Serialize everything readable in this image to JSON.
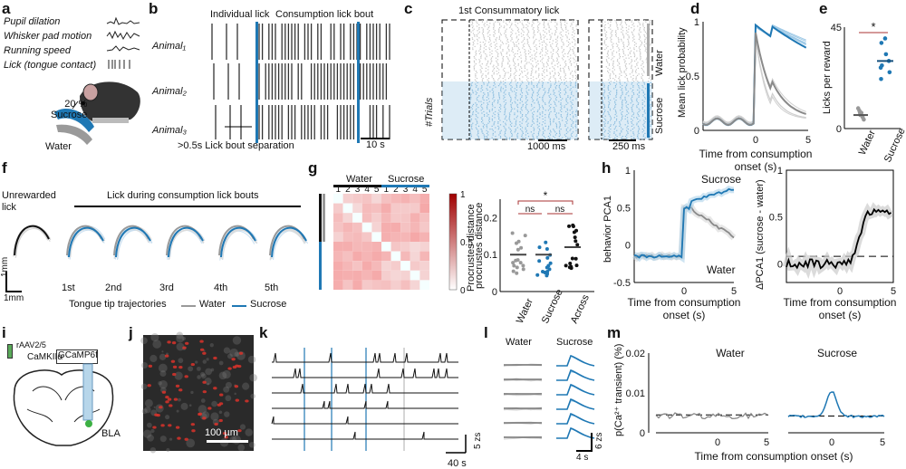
{
  "panels": {
    "a": {
      "label": "a",
      "traces": [
        "Pupil dilation",
        "Whisker pad motion",
        "Running speed",
        "Lick (tongue contact)"
      ],
      "sucrose_label": "20 %\nSucrose",
      "water_label": "Water",
      "colors": {
        "sucrose": "#1f78b4",
        "water": "#9a9a9a"
      }
    },
    "b": {
      "label": "b",
      "individual_lick": "Individual lick",
      "consumption_bout": "Consumption lick bout",
      "animals": [
        "Animal₁",
        "Animal₂",
        "Animal₃"
      ],
      "separation": ">0.5s Lick bout separation",
      "scale": "10 s"
    },
    "c": {
      "label": "c",
      "title": "1st Consummatory lick",
      "trials": "#Trials",
      "scale_left": "1000 ms",
      "scale_right": "250 ms",
      "water": "Water",
      "sucrose": "Sucrose"
    },
    "d": {
      "label": "d",
      "ylabel": "Mean lick probability",
      "xlabel": "Time from consumption\nonset (s)",
      "yticks": [
        "1",
        "0.5",
        "0"
      ],
      "xticks": [
        "0",
        "5"
      ]
    },
    "e": {
      "label": "e",
      "ylabel": "Licks per reward",
      "yticks": [
        "45",
        "0"
      ],
      "categories": [
        "Water",
        "Sucrose"
      ],
      "sig": "*",
      "water_values": [
        4,
        5,
        6,
        7,
        7,
        8,
        9
      ],
      "sucrose_values": [
        22,
        25,
        27,
        28,
        30,
        33,
        38,
        40
      ]
    },
    "f": {
      "label": "f",
      "unrewarded": "Unrewarded\nlick",
      "bouts": "Lick during consumption lick bouts",
      "ordinals": [
        "1st",
        "2nd",
        "3rd",
        "4th",
        "5th"
      ],
      "scale_y": "1mm",
      "scale_x": "1mm",
      "traj": "Tongue tip trajectories",
      "legend_water": "Water",
      "legend_sucrose": "Sucrose"
    },
    "g": {
      "label": "g",
      "water": "Water",
      "sucrose": "Sucrose",
      "cols": [
        "1",
        "2",
        "3",
        "4",
        "5",
        "1",
        "2",
        "3",
        "4",
        "5"
      ],
      "colorbar_label": "Procrustes distance",
      "cb_ticks": [
        "1",
        "0.5",
        "0"
      ],
      "ylabel": "procrustes distance",
      "yticks": [
        "0.2",
        "0.1",
        "0"
      ],
      "cats": [
        "Water",
        "Sucrose",
        "Across"
      ],
      "ns1": "ns",
      "ns2": "ns",
      "sig": "*"
    },
    "h": {
      "label": "h",
      "ylabel1": "behavior PCA1",
      "ylabel2": "ΔPCA1 (sucrose - water)",
      "sucrose": "Sucrose",
      "water": "Water",
      "xlabel": "Time from consumption\nonset (s)",
      "yticks1": [
        "1",
        "0.5",
        "0",
        "-0.5"
      ],
      "yticks2": [
        "1",
        "0.5",
        "0"
      ],
      "xticks": [
        "0",
        "5"
      ]
    },
    "i": {
      "label": "i",
      "virus": "rAAV2/5",
      "promoter": "CaMKIIα",
      "gene": "GCaMP6f",
      "region": "BLA"
    },
    "j": {
      "label": "j",
      "scale": "100 µm"
    },
    "k": {
      "label": "k",
      "scale_y": "5 zs",
      "scale_x": "40 s"
    },
    "l": {
      "label": "l",
      "water": "Water",
      "sucrose": "Sucrose",
      "scale_y": "6 zs",
      "scale_x": "4 s"
    },
    "m": {
      "label": "m",
      "water": "Water",
      "sucrose": "Sucrose",
      "ylabel": "p(Ca²⁺ transient) (%)",
      "yticks": [
        "0.02",
        "0.01",
        "0"
      ],
      "xticks": [
        "0",
        "5",
        "0",
        "5"
      ],
      "xlabel": "Time from consumption onset (s)"
    }
  }
}
